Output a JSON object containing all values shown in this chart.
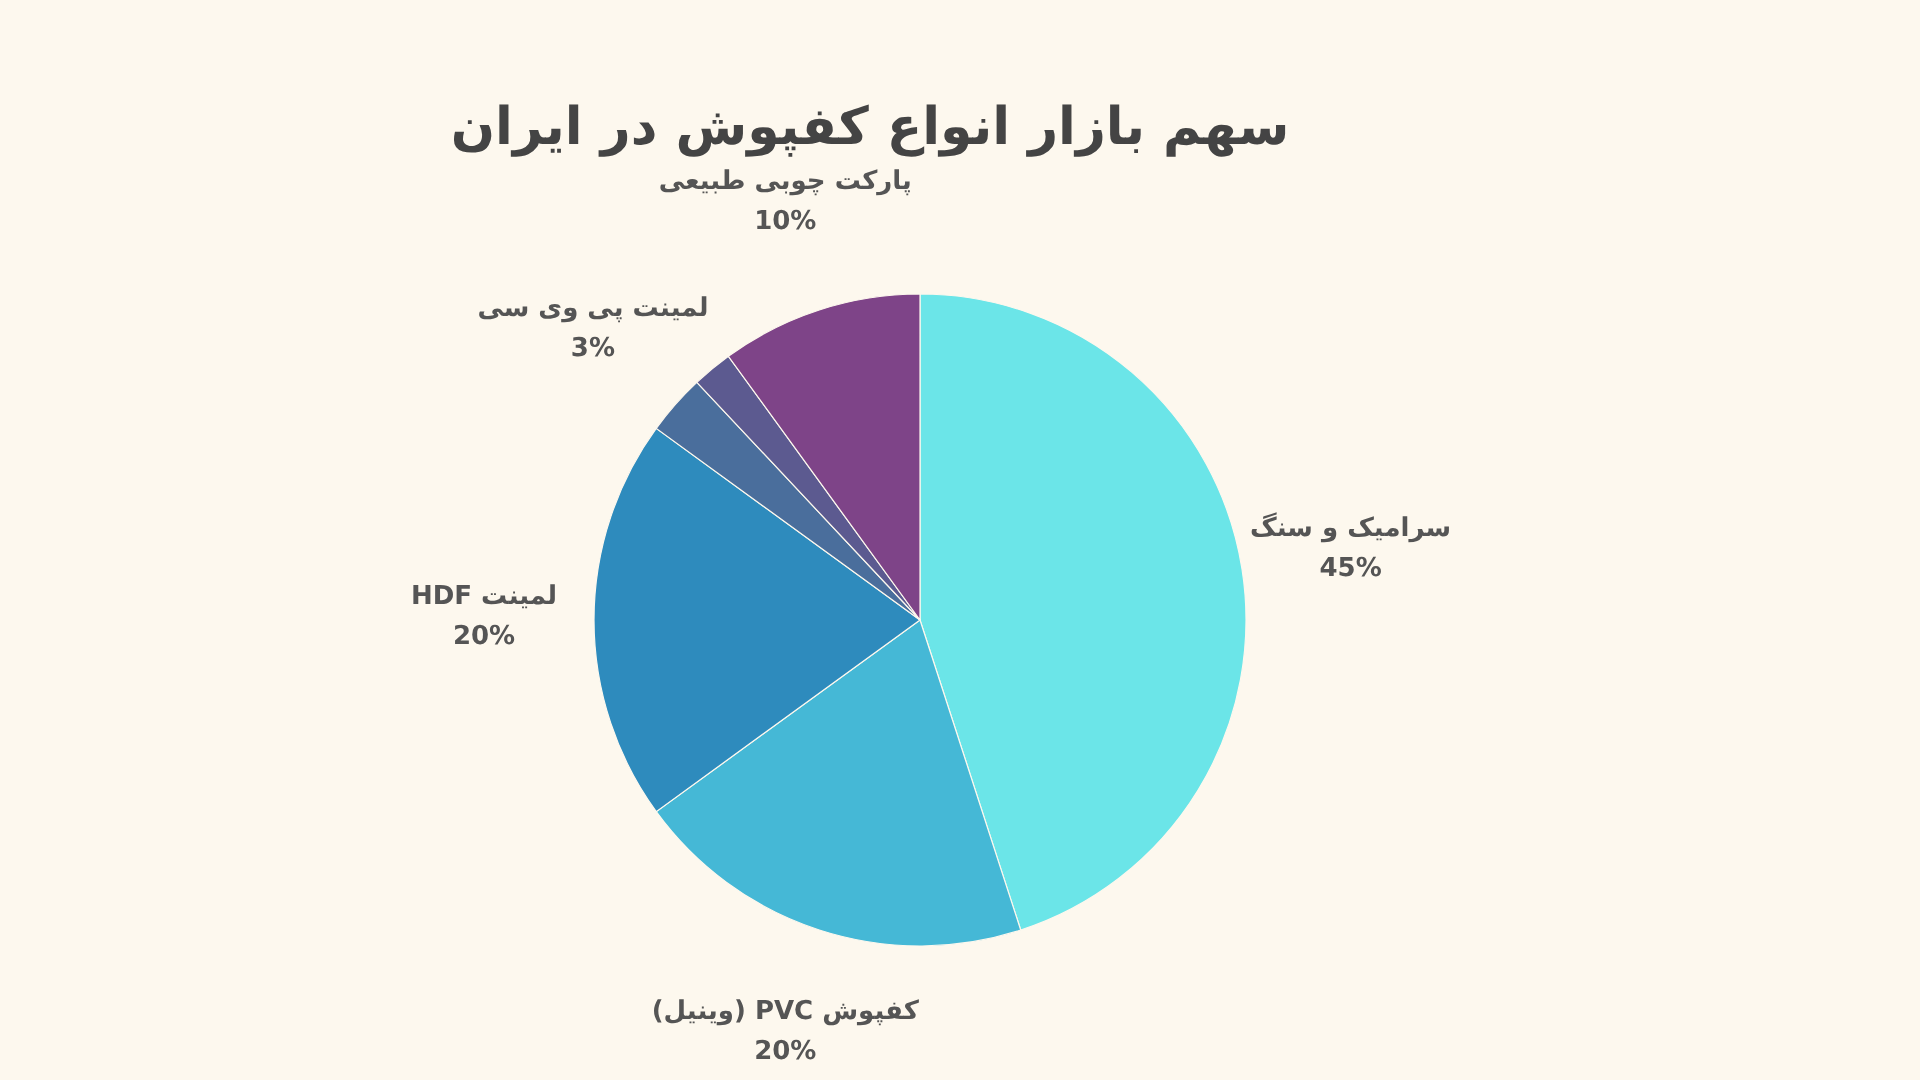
{
  "chart_data": {
    "type": "pie",
    "title": "سهم بازار انواع کفپوش در ایران",
    "categories": [
      "سرامیک و سنگ",
      "کفپوش PVC (وینیل)",
      "لمینت HDF",
      "لمینت پی وی سی",
      null,
      "پارکت چوبی طبیعی"
    ],
    "values": [
      45,
      20,
      20,
      3,
      2,
      10
    ],
    "value_labels": [
      "45%",
      "20%",
      "20%",
      "3%",
      null,
      "10%"
    ],
    "colors": [
      "#6be5e8",
      "#45b8d6",
      "#2e8bbd",
      "#4a6e9c",
      "#5c5a90",
      "#7e4488"
    ]
  }
}
